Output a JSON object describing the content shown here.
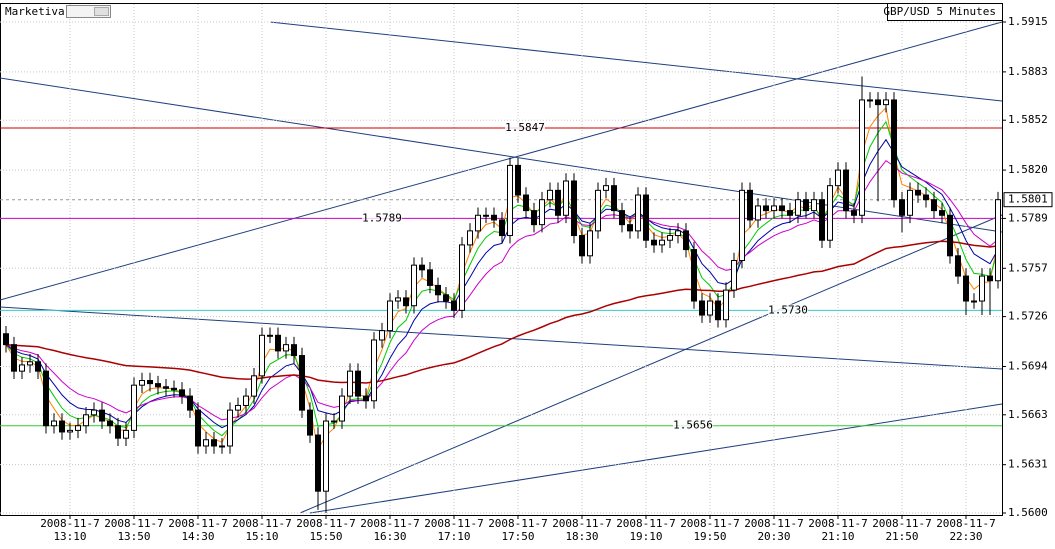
{
  "chart_data": {
    "type": "candlestick",
    "app": "Marketiva",
    "title": "GBP/USD 5 Minutes",
    "categories": [
      null,
      null,
      null,
      null,
      null,
      null,
      null,
      null,
      [
        "2008-11-7",
        "13:10"
      ],
      null,
      null,
      null,
      null,
      null,
      null,
      null,
      [
        "2008-11-7",
        "13:50"
      ],
      null,
      null,
      null,
      null,
      null,
      null,
      null,
      [
        "2008-11-7",
        "14:30"
      ],
      null,
      null,
      null,
      null,
      null,
      null,
      null,
      [
        "2008-11-7",
        "15:10"
      ],
      null,
      null,
      null,
      null,
      null,
      null,
      null,
      [
        "2008-11-7",
        "15:50"
      ],
      null,
      null,
      null,
      null,
      null,
      null,
      null,
      [
        "2008-11-7",
        "16:30"
      ],
      null,
      null,
      null,
      null,
      null,
      null,
      null,
      [
        "2008-11-7",
        "17:10"
      ],
      null,
      null,
      null,
      null,
      null,
      null,
      null,
      [
        "2008-11-7",
        "17:50"
      ],
      null,
      null,
      null,
      null,
      null,
      null,
      null,
      [
        "2008-11-7",
        "18:30"
      ],
      null,
      null,
      null,
      null,
      null,
      null,
      null,
      [
        "2008-11-7",
        "19:10"
      ],
      null,
      null,
      null,
      null,
      null,
      null,
      null,
      [
        "2008-11-7",
        "19:50"
      ],
      null,
      null,
      null,
      null,
      null,
      null,
      null,
      [
        "2008-11-7",
        "20:30"
      ],
      null,
      null,
      null,
      null,
      null,
      null,
      null,
      [
        "2008-11-7",
        "21:10"
      ],
      null,
      null,
      null,
      null,
      null,
      null,
      null,
      [
        "2008-11-7",
        "21:50"
      ],
      null,
      null,
      null,
      null,
      null,
      null,
      null,
      [
        "2008-11-7",
        "22:30"
      ],
      null,
      null,
      null,
      null
    ],
    "open": [
      1.5715,
      1.5708,
      1.5691,
      1.5695,
      1.5697,
      1.5691,
      1.5656,
      1.5659,
      1.5652,
      1.5653,
      1.5656,
      1.5663,
      1.5666,
      1.5659,
      1.5656,
      1.5648,
      1.5653,
      1.5682,
      1.5685,
      1.5683,
      1.5681,
      1.568,
      1.5679,
      1.5675,
      1.5666,
      1.5643,
      1.5647,
      1.5643,
      1.5643,
      1.5666,
      1.5669,
      1.5675,
      1.5688,
      1.5714,
      1.5714,
      1.5704,
      1.5708,
      1.5701,
      1.5666,
      1.565,
      1.5614,
      1.5659,
      1.5659,
      1.5675,
      1.5691,
      1.5675,
      1.5672,
      1.5711,
      1.5717,
      1.5736,
      1.5738,
      1.5733,
      1.5759,
      1.5756,
      1.5746,
      1.574,
      1.5736,
      1.573,
      1.5772,
      1.5781,
      1.5791,
      1.5791,
      1.5788,
      1.5778,
      1.5823,
      1.5804,
      1.5794,
      1.5785,
      1.5801,
      1.5807,
      1.5791,
      1.5813,
      1.5778,
      1.5765,
      1.5781,
      1.5807,
      1.581,
      1.5794,
      1.5785,
      1.5781,
      1.5804,
      1.5775,
      1.5772,
      1.5775,
      1.5778,
      1.5781,
      1.5769,
      1.5736,
      1.5727,
      1.5736,
      1.5724,
      1.5743,
      1.5762,
      1.5807,
      1.5788,
      1.5797,
      1.5794,
      1.5797,
      1.5794,
      1.5791,
      1.5801,
      1.5794,
      1.5801,
      1.5775,
      1.581,
      1.582,
      1.5794,
      1.5791,
      1.5865,
      1.5865,
      1.5862,
      1.5865,
      1.5801,
      1.5791,
      1.5807,
      1.5804,
      1.5801,
      1.5794,
      1.5791,
      1.5765,
      1.5752,
      1.5736,
      1.5736,
      1.5752,
      1.5749
    ],
    "high": [
      1.572,
      1.5713,
      1.57,
      1.5702,
      1.5702,
      1.5696,
      1.5664,
      1.5664,
      1.5658,
      1.5661,
      1.5668,
      1.5671,
      1.5671,
      1.5664,
      1.5661,
      1.5658,
      1.5687,
      1.569,
      1.569,
      1.5688,
      1.5686,
      1.5685,
      1.5684,
      1.568,
      1.5671,
      1.5652,
      1.5652,
      1.5648,
      1.5671,
      1.5674,
      1.568,
      1.5693,
      1.5719,
      1.5719,
      1.5719,
      1.5713,
      1.5713,
      1.5706,
      1.5671,
      1.5655,
      1.5664,
      1.5664,
      1.568,
      1.5696,
      1.5696,
      1.568,
      1.5716,
      1.5722,
      1.5741,
      1.5743,
      1.5743,
      1.5764,
      1.5764,
      1.5761,
      1.5751,
      1.5745,
      1.5741,
      1.5777,
      1.5786,
      1.5796,
      1.5796,
      1.5796,
      1.5793,
      1.5828,
      1.5828,
      1.5809,
      1.5799,
      1.5806,
      1.5812,
      1.5812,
      1.5818,
      1.5818,
      1.5783,
      1.5786,
      1.5812,
      1.5815,
      1.5815,
      1.5799,
      1.579,
      1.5809,
      1.5809,
      1.578,
      1.578,
      1.5783,
      1.5786,
      1.5786,
      1.5774,
      1.5741,
      1.5741,
      1.5741,
      1.5748,
      1.5767,
      1.5812,
      1.5812,
      1.5802,
      1.5802,
      1.5802,
      1.5802,
      1.5799,
      1.5806,
      1.5806,
      1.5806,
      1.5806,
      1.5815,
      1.5825,
      1.5825,
      1.5799,
      1.588,
      1.587,
      1.587,
      1.587,
      1.587,
      1.5806,
      1.5812,
      1.5812,
      1.5809,
      1.5806,
      1.5799,
      1.5796,
      1.577,
      1.5757,
      1.5741,
      1.5757,
      1.5757,
      1.5806
    ],
    "low": [
      1.5703,
      1.5686,
      1.5686,
      1.569,
      1.5686,
      1.5651,
      1.5651,
      1.5647,
      1.5647,
      1.5648,
      1.5651,
      1.5658,
      1.5654,
      1.5651,
      1.5643,
      1.5643,
      1.5648,
      1.5677,
      1.5678,
      1.5676,
      1.5675,
      1.5674,
      1.567,
      1.5661,
      1.5638,
      1.5638,
      1.5638,
      1.5638,
      1.5638,
      1.5661,
      1.5664,
      1.567,
      1.5683,
      1.5709,
      1.5699,
      1.5699,
      1.5696,
      1.5661,
      1.5645,
      1.5602,
      1.56,
      1.5654,
      1.5654,
      1.567,
      1.567,
      1.5667,
      1.5667,
      1.5706,
      1.5712,
      1.5731,
      1.5728,
      1.5728,
      1.5751,
      1.5741,
      1.5735,
      1.5731,
      1.5725,
      1.5725,
      1.5767,
      1.5776,
      1.5786,
      1.5783,
      1.5773,
      1.5773,
      1.5799,
      1.5789,
      1.578,
      1.578,
      1.5796,
      1.5786,
      1.5786,
      1.5773,
      1.576,
      1.576,
      1.5776,
      1.5802,
      1.5789,
      1.578,
      1.5776,
      1.5776,
      1.577,
      1.5767,
      1.5767,
      1.577,
      1.5773,
      1.5764,
      1.5731,
      1.5722,
      1.5722,
      1.5719,
      1.5719,
      1.5738,
      1.5757,
      1.5783,
      1.5783,
      1.5789,
      1.5789,
      1.5789,
      1.5786,
      1.5786,
      1.5789,
      1.5789,
      1.577,
      1.577,
      1.5805,
      1.5789,
      1.5786,
      1.5786,
      1.586,
      1.58,
      1.5857,
      1.5796,
      1.578,
      1.5786,
      1.5799,
      1.5796,
      1.5789,
      1.5786,
      1.576,
      1.5747,
      1.5727,
      1.5731,
      1.5727,
      1.5727,
      1.5744
    ],
    "close": [
      1.5708,
      1.5691,
      1.5695,
      1.5697,
      1.5691,
      1.5656,
      1.5659,
      1.5652,
      1.5653,
      1.5656,
      1.5663,
      1.5666,
      1.5659,
      1.5656,
      1.5648,
      1.5653,
      1.5682,
      1.5685,
      1.5683,
      1.5681,
      1.568,
      1.5679,
      1.5675,
      1.5666,
      1.5643,
      1.5647,
      1.5643,
      1.5643,
      1.5666,
      1.5669,
      1.5675,
      1.5688,
      1.5714,
      1.5714,
      1.5704,
      1.5708,
      1.5701,
      1.5666,
      1.565,
      1.5614,
      1.5659,
      1.5659,
      1.5675,
      1.5691,
      1.5675,
      1.5672,
      1.5711,
      1.5717,
      1.5736,
      1.5738,
      1.5733,
      1.5759,
      1.5756,
      1.5746,
      1.574,
      1.5736,
      1.573,
      1.5772,
      1.5781,
      1.5791,
      1.5791,
      1.5788,
      1.5778,
      1.5823,
      1.5804,
      1.5794,
      1.5785,
      1.5801,
      1.5807,
      1.5791,
      1.5813,
      1.5778,
      1.5765,
      1.5781,
      1.5807,
      1.581,
      1.5794,
      1.5785,
      1.5781,
      1.5804,
      1.5775,
      1.5772,
      1.5775,
      1.5778,
      1.5781,
      1.5769,
      1.5736,
      1.5727,
      1.5736,
      1.5724,
      1.5743,
      1.5762,
      1.5807,
      1.5788,
      1.5797,
      1.5794,
      1.5797,
      1.5794,
      1.5791,
      1.5801,
      1.5794,
      1.5801,
      1.5775,
      1.581,
      1.582,
      1.5794,
      1.5791,
      1.5865,
      1.5865,
      1.5862,
      1.5865,
      1.5801,
      1.5791,
      1.5807,
      1.5804,
      1.5801,
      1.5794,
      1.5791,
      1.5765,
      1.5752,
      1.5736,
      1.5736,
      1.5752,
      1.5749,
      1.5801
    ],
    "up_color": "#ffffff",
    "down_color": "#000000",
    "ylim": [
      1.56,
      1.5915
    ],
    "yticks": [
      1.5915,
      1.5883,
      1.5852,
      {
        "value": 1.582,
        "label": "1.5820"
      },
      1.5789,
      1.5757,
      1.5726,
      1.5694,
      1.5663,
      1.5631,
      {
        "value": 1.56,
        "label": "1.5600"
      }
    ],
    "grid": true,
    "levels": [
      {
        "value": 1.5847,
        "color": "#cc0000"
      },
      {
        "value": 1.5789,
        "color": "#cc00cc"
      },
      {
        "value": 1.573,
        "label": "1.5730",
        "color": "#33cccc"
      },
      {
        "value": 1.5656,
        "color": "#33cc33"
      }
    ],
    "last": 1.5801
  }
}
